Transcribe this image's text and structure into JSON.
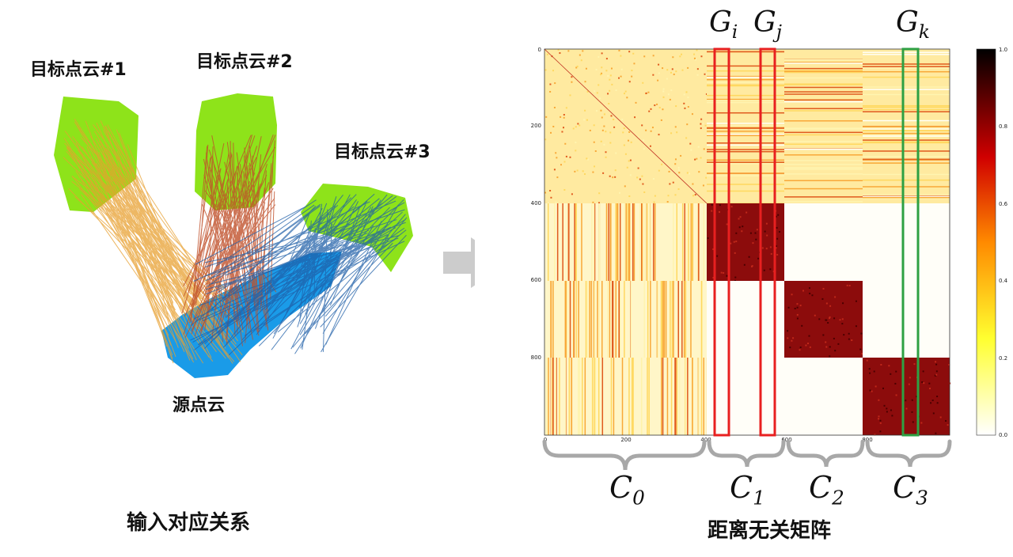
{
  "left_panel": {
    "targets": [
      "目标点云#1",
      "目标点云#2",
      "目标点云#3"
    ],
    "source": "源点云",
    "caption": "输入对应关系"
  },
  "right_panel": {
    "caption": "距离无关矩阵",
    "group_labels": [
      {
        "base": "G",
        "sub": "i",
        "color": "#e82020"
      },
      {
        "base": "G",
        "sub": "j",
        "color": "#e82020"
      },
      {
        "base": "G",
        "sub": "k",
        "color": "#2ea043"
      }
    ],
    "clusters": [
      {
        "base": "C",
        "sub": "0"
      },
      {
        "base": "C",
        "sub": "1"
      },
      {
        "base": "C",
        "sub": "2"
      },
      {
        "base": "C",
        "sub": "3"
      }
    ],
    "x_ticks": [
      "0",
      "200",
      "400",
      "600",
      "800"
    ],
    "y_ticks": [
      "0",
      "200",
      "400",
      "600",
      "800"
    ],
    "colorbar_ticks": [
      "1.0",
      "0.8",
      "0.6",
      "0.4",
      "0.2",
      "0.0"
    ]
  },
  "colors": {
    "green": "#8ee31a",
    "blue": "#1a9be8",
    "orange": "#e8a030",
    "rust": "#c0502a",
    "navy": "#1f5fa8",
    "arrow": "#cccccc"
  }
}
